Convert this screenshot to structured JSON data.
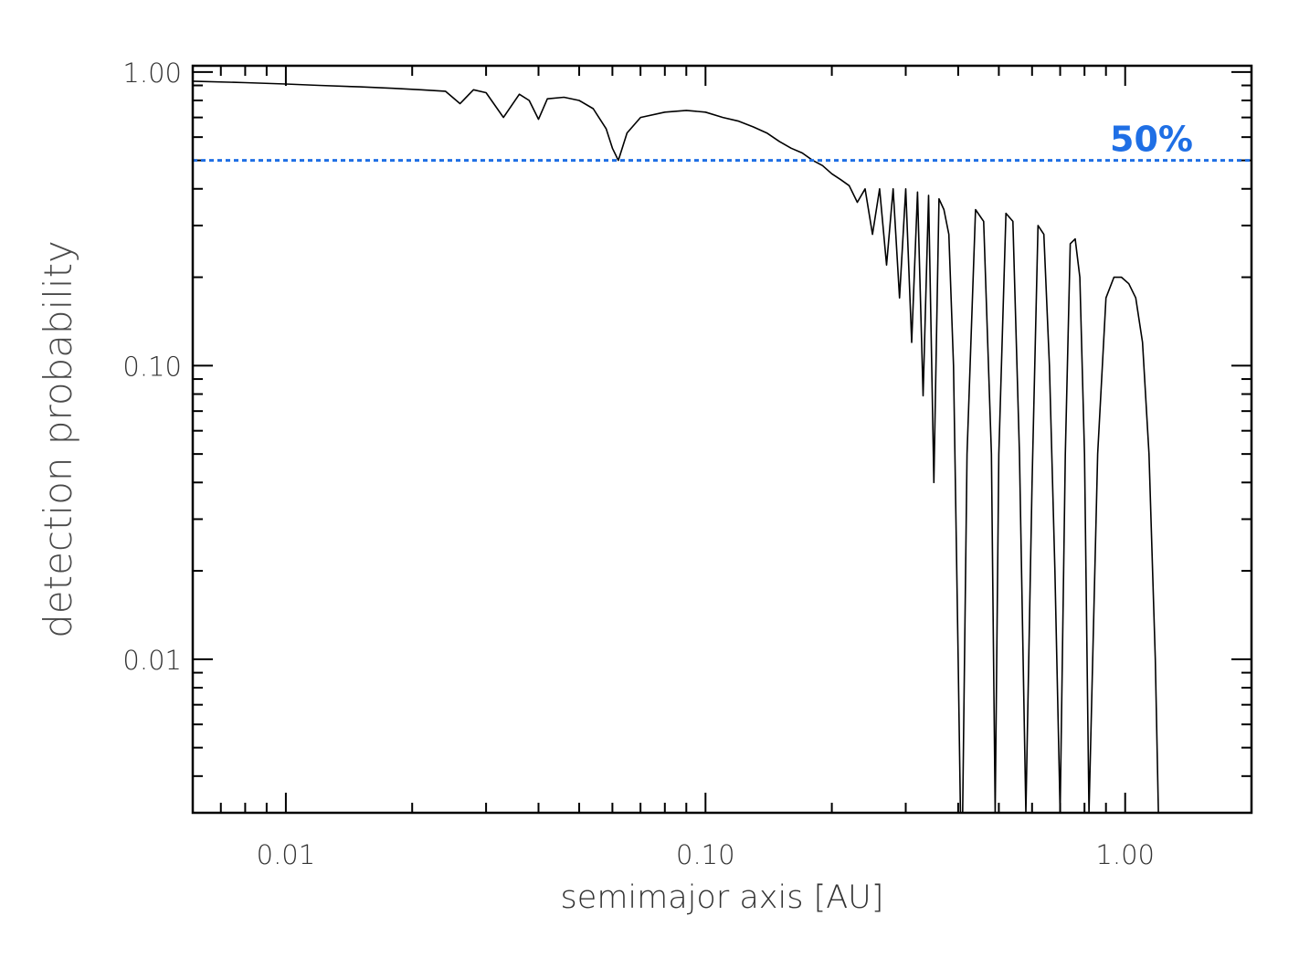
{
  "colors": {
    "threshold": "#1f6fe5",
    "curve": "#000000",
    "axis": "#000000"
  },
  "chart_data": {
    "type": "line",
    "title": "",
    "xlabel": "semimajor axis [AU]",
    "ylabel": "detection probability",
    "x_scale": "log",
    "y_scale": "log",
    "xlim": [
      0.006,
      2.0
    ],
    "ylim": [
      0.003,
      1.05
    ],
    "x_ticks": [
      0.01,
      0.1,
      1.0
    ],
    "x_tick_labels": [
      "0.01",
      "0.10",
      "1.00"
    ],
    "y_ticks": [
      0.01,
      0.1,
      1.0
    ],
    "y_tick_labels": [
      "0.01",
      "0.10",
      "1.00"
    ],
    "grid": false,
    "threshold": {
      "value": 0.5,
      "label": "50%",
      "style": "dotted"
    },
    "series": [
      {
        "x": [
          0.006,
          0.008,
          0.01,
          0.012,
          0.015,
          0.018,
          0.021,
          0.024,
          0.026,
          0.028,
          0.03,
          0.033,
          0.036,
          0.038,
          0.04,
          0.042,
          0.046,
          0.05,
          0.054,
          0.058,
          0.06,
          0.062,
          0.065,
          0.07,
          0.08,
          0.09,
          0.1,
          0.11,
          0.12,
          0.13,
          0.14,
          0.15,
          0.16,
          0.17,
          0.18,
          0.19,
          0.2,
          0.21,
          0.22,
          0.23,
          0.24,
          0.25,
          0.26,
          0.27,
          0.28,
          0.29,
          0.3,
          0.31,
          0.32,
          0.33,
          0.34,
          0.35,
          0.36,
          0.37,
          0.38,
          0.39,
          0.4,
          0.405,
          0.41,
          0.42,
          0.44,
          0.46,
          0.48,
          0.49,
          0.5,
          0.52,
          0.54,
          0.56,
          0.58,
          0.6,
          0.62,
          0.64,
          0.66,
          0.68,
          0.7,
          0.72,
          0.74,
          0.76,
          0.78,
          0.8,
          0.82,
          0.86,
          0.9,
          0.94,
          0.98,
          1.02,
          1.06,
          1.1,
          1.14,
          1.18,
          1.2
        ],
        "y": [
          0.93,
          0.92,
          0.91,
          0.9,
          0.89,
          0.88,
          0.87,
          0.86,
          0.78,
          0.87,
          0.85,
          0.7,
          0.84,
          0.8,
          0.69,
          0.81,
          0.82,
          0.8,
          0.75,
          0.64,
          0.55,
          0.5,
          0.62,
          0.7,
          0.73,
          0.74,
          0.73,
          0.7,
          0.68,
          0.65,
          0.62,
          0.58,
          0.55,
          0.53,
          0.5,
          0.48,
          0.45,
          0.43,
          0.41,
          0.36,
          0.4,
          0.28,
          0.4,
          0.22,
          0.4,
          0.17,
          0.4,
          0.12,
          0.39,
          0.079,
          0.38,
          0.04,
          0.37,
          0.34,
          0.28,
          0.1,
          0.01,
          0.003,
          0.003,
          0.05,
          0.34,
          0.31,
          0.05,
          0.003,
          0.05,
          0.33,
          0.31,
          0.05,
          0.003,
          0.04,
          0.3,
          0.28,
          0.1,
          0.02,
          0.003,
          0.05,
          0.26,
          0.27,
          0.2,
          0.05,
          0.003,
          0.05,
          0.17,
          0.2,
          0.2,
          0.19,
          0.17,
          0.12,
          0.05,
          0.01,
          0.003
        ]
      }
    ]
  }
}
